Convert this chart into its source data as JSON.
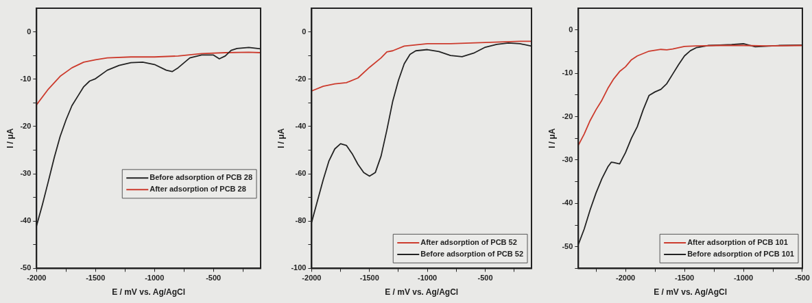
{
  "chart_data": [
    {
      "type": "line",
      "xlabel": "E / mV vs. Ag/AgCl",
      "ylabel": "I / μA",
      "xlim": [
        -2000,
        -100
      ],
      "ylim": [
        -50,
        5
      ],
      "xticks": [
        -2000,
        {
          "value": -1750,
          "label": null
        },
        -1500,
        {
          "value": -1250,
          "label": null
        },
        -1000,
        {
          "value": -750,
          "label": null
        },
        -500,
        {
          "value": -250,
          "label": null
        }
      ],
      "yticks": [
        -50,
        {
          "value": -45,
          "label": null
        },
        -40,
        {
          "value": -35,
          "label": null
        },
        -30,
        {
          "value": -25,
          "label": null
        },
        -20,
        {
          "value": -15,
          "label": null
        },
        -10,
        {
          "value": -5,
          "label": null
        },
        0
      ],
      "legend": "center right",
      "grid": false,
      "line_style": "solid",
      "marker": "none",
      "series": [
        {
          "name": "Before adsorption of PCB 28",
          "color": "#222222",
          "x": [
            -2000,
            -1950,
            -1900,
            -1850,
            -1800,
            -1750,
            -1700,
            -1650,
            -1600,
            -1550,
            -1500,
            -1400,
            -1300,
            -1200,
            -1100,
            -1000,
            -900,
            -850,
            -800,
            -700,
            -600,
            -500,
            -450,
            -400,
            -350,
            -300,
            -200,
            -100
          ],
          "values": [
            -41,
            -36.5,
            -31.6,
            -26.6,
            -22.1,
            -18.6,
            -15.6,
            -13.6,
            -11.6,
            -10.4,
            -9.9,
            -8.1,
            -7.1,
            -6.5,
            -6.4,
            -6.9,
            -8.1,
            -8.4,
            -7.6,
            -5.5,
            -4.9,
            -4.9,
            -5.7,
            -5.1,
            -3.9,
            -3.5,
            -3.3,
            -3.6
          ]
        },
        {
          "name": "After adsorption of PCB 28",
          "color": "#cc3a2c",
          "x": [
            -2000,
            -1900,
            -1800,
            -1700,
            -1600,
            -1500,
            -1400,
            -1200,
            -1000,
            -800,
            -600,
            -400,
            -200,
            -100
          ],
          "values": [
            -15.4,
            -12.1,
            -9.4,
            -7.6,
            -6.4,
            -5.9,
            -5.5,
            -5.3,
            -5.3,
            -5.1,
            -4.6,
            -4.4,
            -4.3,
            -4.4
          ]
        }
      ]
    },
    {
      "type": "line",
      "xlabel": "E / mV vs. Ag/AgCl",
      "ylabel": "I / μA",
      "xlim": [
        -2000,
        -100
      ],
      "ylim": [
        -100,
        10
      ],
      "xticks": [
        -2000,
        {
          "value": -1750,
          "label": null
        },
        -1500,
        {
          "value": -1250,
          "label": null
        },
        -1000,
        {
          "value": -750,
          "label": null
        },
        -500,
        {
          "value": -250,
          "label": null
        }
      ],
      "yticks": [
        -100,
        {
          "value": -90,
          "label": null
        },
        -80,
        {
          "value": -70,
          "label": null
        },
        -60,
        {
          "value": -50,
          "label": null
        },
        -40,
        {
          "value": -30,
          "label": null
        },
        -20,
        {
          "value": -10,
          "label": null
        },
        0
      ],
      "legend": "bottom right",
      "grid": false,
      "line_style": "solid",
      "marker": "none",
      "series": [
        {
          "name": "After adsorption of PCB 52",
          "color": "#cc3a2c",
          "x": [
            -2000,
            -1900,
            -1800,
            -1700,
            -1600,
            -1500,
            -1400,
            -1350,
            -1300,
            -1200,
            -1100,
            -1000,
            -800,
            -500,
            -200,
            -100
          ],
          "values": [
            -25,
            -23,
            -22,
            -21.5,
            -19.5,
            -15,
            -11,
            -8.5,
            -8,
            -6,
            -5.5,
            -5,
            -5,
            -4.5,
            -4,
            -4
          ]
        },
        {
          "name": "Before adsorption of PCB 52",
          "color": "#222222",
          "x": [
            -2000,
            -1950,
            -1900,
            -1850,
            -1800,
            -1750,
            -1700,
            -1650,
            -1600,
            -1550,
            -1500,
            -1450,
            -1400,
            -1350,
            -1300,
            -1250,
            -1200,
            -1150,
            -1100,
            -1000,
            -900,
            -800,
            -700,
            -600,
            -500,
            -400,
            -300,
            -200,
            -100
          ],
          "values": [
            -80.5,
            -71.5,
            -62.5,
            -54.5,
            -49.5,
            -47.3,
            -48,
            -51.5,
            -56,
            -59.5,
            -61,
            -59.5,
            -52.5,
            -41.5,
            -29.5,
            -20.5,
            -13.5,
            -9.5,
            -8,
            -7.5,
            -8.3,
            -10,
            -10.5,
            -9,
            -6.5,
            -5.3,
            -4.7,
            -5,
            -6
          ]
        }
      ]
    },
    {
      "type": "line",
      "xlabel": "E / mV vs. Ag/AgCl",
      "ylabel": "I / μA",
      "xlim": [
        -2400,
        -500
      ],
      "ylim": [
        -55,
        5
      ],
      "xticks": [
        {
          "value": -2250,
          "label": null
        },
        -2000,
        {
          "value": -1750,
          "label": null
        },
        -1500,
        {
          "value": -1250,
          "label": null
        },
        -1000,
        {
          "value": -750,
          "label": null
        },
        -500
      ],
      "yticks": [
        {
          "value": -55,
          "label": null
        },
        -50,
        {
          "value": -45,
          "label": null
        },
        -40,
        {
          "value": -35,
          "label": null
        },
        -30,
        {
          "value": -25,
          "label": null
        },
        -20,
        {
          "value": -15,
          "label": null
        },
        -10,
        {
          "value": -5,
          "label": null
        },
        0
      ],
      "legend": "bottom right",
      "grid": false,
      "line_style": "solid",
      "marker": "none",
      "series": [
        {
          "name": "After adsorption of PCB 101",
          "color": "#cc3a2c",
          "x": [
            -2400,
            -2350,
            -2300,
            -2250,
            -2200,
            -2150,
            -2100,
            -2050,
            -2000,
            -1950,
            -1900,
            -1800,
            -1700,
            -1650,
            -1600,
            -1500,
            -1400,
            -1200,
            -1000,
            -800,
            -500
          ],
          "values": [
            -26.6,
            -24,
            -20.9,
            -18.4,
            -16.2,
            -13.5,
            -11.3,
            -9.6,
            -8.5,
            -6.9,
            -6,
            -4.9,
            -4.5,
            -4.6,
            -4.4,
            -3.8,
            -3.7,
            -3.6,
            -3.6,
            -3.7,
            -3.6
          ]
        },
        {
          "name": "Before adsorption of PCB 101",
          "color": "#222222",
          "x": [
            -2400,
            -2350,
            -2300,
            -2250,
            -2200,
            -2150,
            -2120,
            -2100,
            -2050,
            -2000,
            -1950,
            -1900,
            -1850,
            -1800,
            -1750,
            -1700,
            -1650,
            -1600,
            -1550,
            -1500,
            -1450,
            -1400,
            -1300,
            -1200,
            -1100,
            -1000,
            -900,
            -700,
            -500
          ],
          "values": [
            -49.5,
            -45.9,
            -41.5,
            -37.6,
            -34.3,
            -31.6,
            -30.5,
            -30.6,
            -30.9,
            -28.3,
            -25,
            -22.3,
            -18.4,
            -15.1,
            -14.3,
            -13.7,
            -12.4,
            -10.2,
            -8,
            -6,
            -4.8,
            -4.1,
            -3.6,
            -3.5,
            -3.4,
            -3.2,
            -3.9,
            -3.6,
            -3.5
          ]
        }
      ]
    }
  ]
}
